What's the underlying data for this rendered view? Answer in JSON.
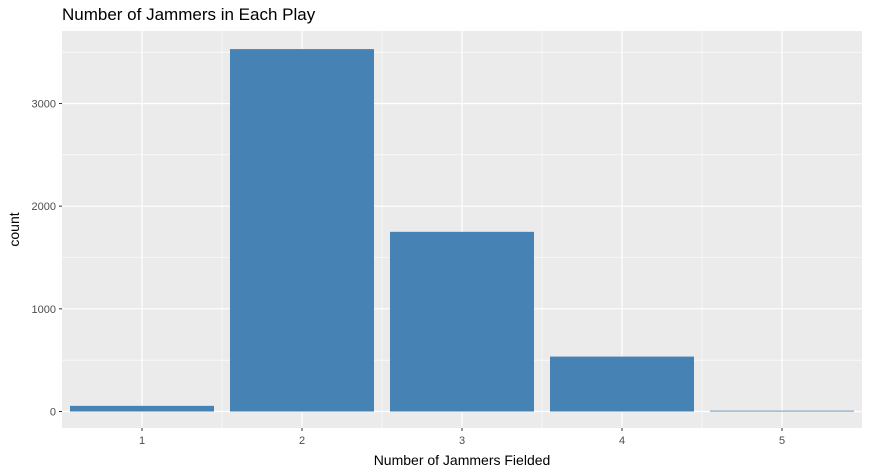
{
  "chart_data": {
    "type": "bar",
    "title": "Number of Jammers in Each Play",
    "xlabel": "Number of Jammers Fielded",
    "ylabel": "count",
    "categories": [
      "1",
      "2",
      "3",
      "4",
      "5"
    ],
    "values": [
      55,
      3530,
      1750,
      535,
      6
    ],
    "ylim": [
      0,
      3720
    ],
    "yticks": [
      0,
      1000,
      2000,
      3000
    ],
    "ytick_labels": [
      "0",
      "1000",
      "2000",
      "3000"
    ],
    "grid": true,
    "bar_color": "#4682B4",
    "panel_background": "#EBEBEB",
    "grid_color": "#FFFFFF"
  }
}
